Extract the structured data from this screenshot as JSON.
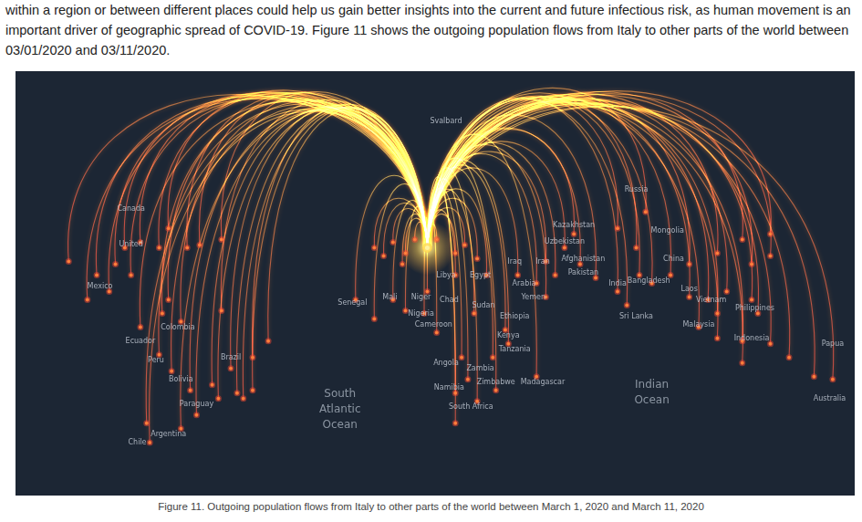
{
  "header": {
    "text": "within a region or between different places could help us gain better insights into the current and future infectious risk, as human movement is an important driver of geographic spread of COVID-19. Figure 11 shows the outgoing population flows from Italy to other parts of the world between 03/01/2020 and 03/11/2020."
  },
  "chart_data": {
    "type": "flow_map",
    "xlim": [
      -110,
      155
    ],
    "ylim": [
      -60,
      90
    ],
    "tick_labels": false,
    "grid": false,
    "origin": {
      "x": 20,
      "y": 28
    },
    "destinations": {
      "x": [
        -95,
        -86,
        -82,
        -77,
        -72,
        -66,
        -57,
        -53,
        -80,
        -75,
        -63,
        -65,
        -59,
        -66,
        -62,
        -56,
        -49,
        -41,
        -39,
        -36,
        -43,
        -36,
        -31,
        -70,
        -69,
        -59,
        -54,
        -47,
        -46,
        -89,
        -72,
        -63,
        -46,
        9,
        13,
        16,
        23,
        29,
        6,
        32,
        36,
        12,
        3,
        -3,
        9,
        19,
        23,
        35,
        45,
        46,
        41,
        31,
        33,
        29,
        36,
        29,
        42,
        55,
        20,
        13,
        3,
        29,
        39,
        49,
        55,
        58,
        61,
        58,
        64,
        69,
        74,
        81,
        84,
        88,
        92,
        98,
        104,
        113,
        121,
        130,
        104,
        110,
        116,
        113,
        107,
        113,
        124,
        126,
        121,
        130,
        136,
        144,
        150,
        121,
        87,
        81,
        90,
        130,
        124,
        67
      ],
      "y": [
        23,
        18,
        12,
        28,
        30,
        28,
        28,
        29,
        22,
        18,
        9,
        4,
        1,
        -11,
        -17,
        -24,
        -22,
        -25,
        -27,
        -24,
        -16,
        -12,
        -6,
        -36,
        -43,
        -38,
        -33,
        -27,
        5,
        9,
        -1,
        35,
        31,
        30,
        26,
        31,
        31,
        26,
        25,
        29,
        24,
        22,
        28,
        9,
        9,
        4,
        -3,
        4,
        -2,
        -7,
        -12,
        -12,
        -20,
        -25,
        -28,
        -36,
        -24,
        -19,
        12,
        5,
        2,
        18,
        18,
        18,
        15,
        10,
        18,
        23,
        28,
        22,
        17,
        12,
        7,
        18,
        15,
        18,
        22,
        26,
        31,
        25,
        10,
        9,
        12,
        4,
        -1,
        -5,
        9,
        4,
        -6,
        -7,
        -12,
        -19,
        -20,
        -14,
        28,
        35,
        41,
        33,
        22,
        33
      ]
    },
    "place_labels": [
      {
        "text": "Svalbard",
        "x": 26,
        "y": 74
      },
      {
        "text": "Canada",
        "x": -75,
        "y": 42
      },
      {
        "text": "United",
        "x": -75,
        "y": 29
      },
      {
        "text": "Mexico",
        "x": -85,
        "y": 14
      },
      {
        "text": "Colombia",
        "x": -60,
        "y": -1
      },
      {
        "text": "Ecuador",
        "x": -72,
        "y": -6
      },
      {
        "text": "Peru",
        "x": -67,
        "y": -13
      },
      {
        "text": "Bolivia",
        "x": -59,
        "y": -20
      },
      {
        "text": "Brazil",
        "x": -43,
        "y": -12
      },
      {
        "text": "Paraguay",
        "x": -54,
        "y": -29
      },
      {
        "text": "Argentina",
        "x": -63,
        "y": -40
      },
      {
        "text": "Chile",
        "x": -73,
        "y": -43
      },
      {
        "text": "Senegal",
        "x": -4,
        "y": 8
      },
      {
        "text": "Mali",
        "x": 8,
        "y": 10
      },
      {
        "text": "Niger",
        "x": 18,
        "y": 10
      },
      {
        "text": "Chad",
        "x": 27,
        "y": 9
      },
      {
        "text": "Nigeria",
        "x": 18,
        "y": 4
      },
      {
        "text": "Cameroon",
        "x": 22,
        "y": 0
      },
      {
        "text": "Libya",
        "x": 26,
        "y": 18
      },
      {
        "text": "Egypt",
        "x": 37,
        "y": 18
      },
      {
        "text": "Sudan",
        "x": 38,
        "y": 7
      },
      {
        "text": "Ethiopia",
        "x": 48,
        "y": 3
      },
      {
        "text": "Kenya",
        "x": 46,
        "y": -4
      },
      {
        "text": "Tanzania",
        "x": 48,
        "y": -9
      },
      {
        "text": "Angola",
        "x": 26,
        "y": -14
      },
      {
        "text": "Zambia",
        "x": 37,
        "y": -16
      },
      {
        "text": "Zimbabwe",
        "x": 42,
        "y": -21
      },
      {
        "text": "Namibia",
        "x": 27,
        "y": -23
      },
      {
        "text": "South Africa",
        "x": 34,
        "y": -30
      },
      {
        "text": "Madagascar",
        "x": 57,
        "y": -21
      },
      {
        "text": "Arabia",
        "x": 51,
        "y": 15
      },
      {
        "text": "Yemen",
        "x": 54,
        "y": 10
      },
      {
        "text": "Iraq",
        "x": 48,
        "y": 23
      },
      {
        "text": "Iran",
        "x": 57,
        "y": 23
      },
      {
        "text": "Afghanistan",
        "x": 70,
        "y": 24
      },
      {
        "text": "Pakistan",
        "x": 70,
        "y": 19
      },
      {
        "text": "Kazakhstan",
        "x": 67,
        "y": 36
      },
      {
        "text": "Uzbekistan",
        "x": 64,
        "y": 30
      },
      {
        "text": "Russia",
        "x": 87,
        "y": 49
      },
      {
        "text": "Mongolia",
        "x": 97,
        "y": 34
      },
      {
        "text": "China",
        "x": 99,
        "y": 24
      },
      {
        "text": "India",
        "x": 81,
        "y": 15
      },
      {
        "text": "Bangladesh",
        "x": 91,
        "y": 16
      },
      {
        "text": "Sri Lanka",
        "x": 87,
        "y": 3
      },
      {
        "text": "Laos",
        "x": 104,
        "y": 13
      },
      {
        "text": "Vietnam",
        "x": 111,
        "y": 9
      },
      {
        "text": "Philippines",
        "x": 125,
        "y": 6
      },
      {
        "text": "Malaysia",
        "x": 107,
        "y": 0
      },
      {
        "text": "Indonesia",
        "x": 124,
        "y": -5
      },
      {
        "text": "Papua",
        "x": 150,
        "y": -7
      },
      {
        "text": "Australia",
        "x": 149,
        "y": -27
      }
    ],
    "ocean_labels": [
      {
        "text": "South Atlantic Ocean",
        "x": -8,
        "y": -31
      },
      {
        "text": "Indian Ocean",
        "x": 92,
        "y": -25
      }
    ]
  },
  "caption": "Figure 11. Outgoing population flows from Italy to other parts of the world between March 1, 2020 and March 11, 2020"
}
